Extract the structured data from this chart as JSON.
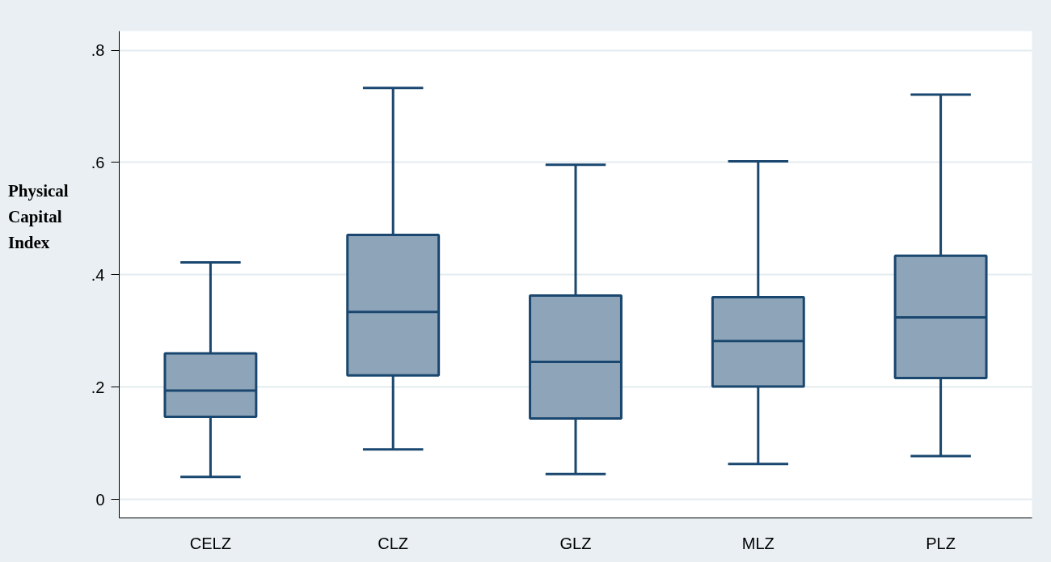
{
  "chart_data": {
    "type": "box",
    "ylabel": "Physical Capital Index",
    "categories": [
      "CELZ",
      "CLZ",
      "GLZ",
      "MLZ",
      "PLZ"
    ],
    "series": [
      {
        "color": "#8ea4b8",
        "boxes": [
          {
            "low": 0.04,
            "q1": 0.147,
            "median": 0.194,
            "q3": 0.26,
            "high": 0.422
          },
          {
            "low": 0.089,
            "q1": 0.221,
            "median": 0.334,
            "q3": 0.471,
            "high": 0.733
          },
          {
            "low": 0.045,
            "q1": 0.144,
            "median": 0.245,
            "q3": 0.363,
            "high": 0.596
          },
          {
            "low": 0.063,
            "q1": 0.201,
            "median": 0.282,
            "q3": 0.36,
            "high": 0.602
          },
          {
            "low": 0.077,
            "q1": 0.216,
            "median": 0.324,
            "q3": 0.434,
            "high": 0.721
          }
        ]
      }
    ],
    "ylim": [
      -0.033,
      0.834
    ],
    "yticks": [
      0,
      {
        "value": 0.2,
        "label": ".2"
      },
      {
        "value": 0.4,
        "label": ".4"
      },
      {
        "value": 0.6,
        "label": ".6"
      },
      {
        "value": 0.8,
        "label": ".8"
      }
    ],
    "grid": "y"
  }
}
